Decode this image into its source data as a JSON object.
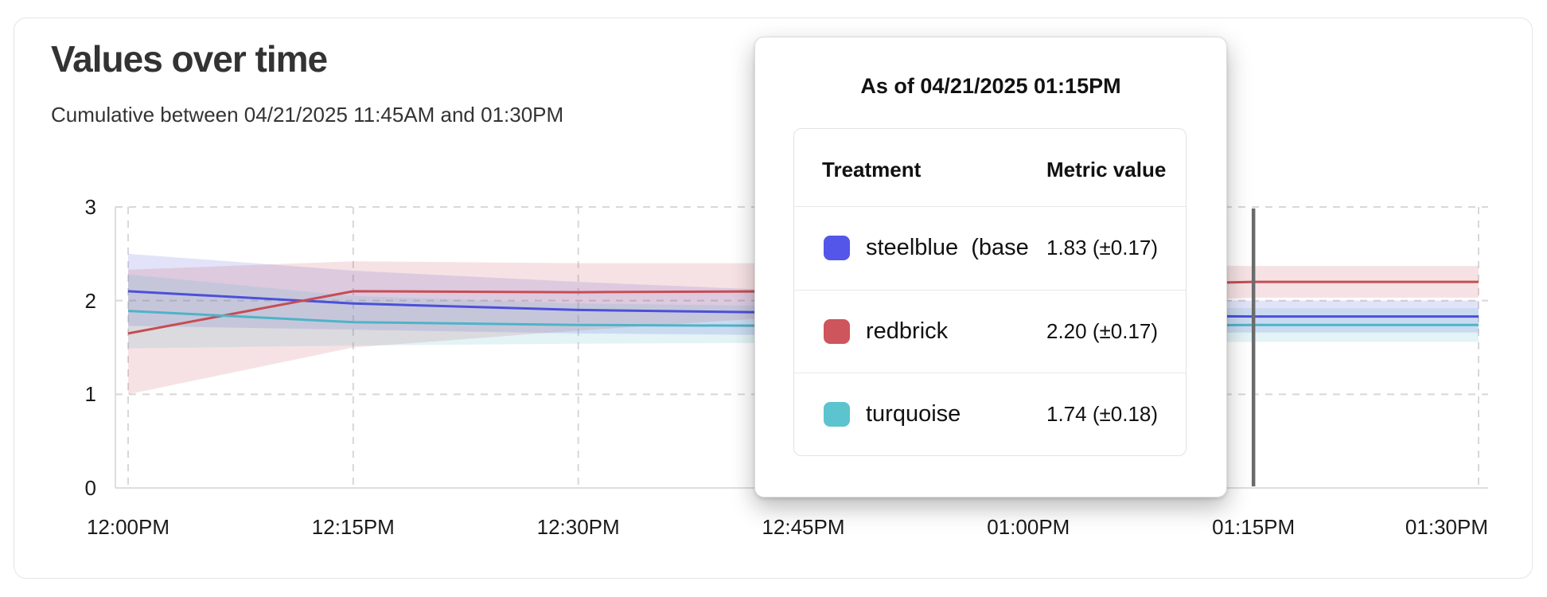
{
  "card": {
    "title": "Values over time",
    "subtitle": "Cumulative between 04/21/2025 11:45AM and 01:30PM"
  },
  "tooltip": {
    "header": "As of 04/21/2025 01:15PM",
    "columns": [
      "Treatment",
      "Metric value"
    ],
    "rows": [
      {
        "label": "steelblue  (baseli",
        "value": "1.83 (±0.17)",
        "swatch_color": "#5356e8"
      },
      {
        "label": "redbrick",
        "value": "2.20 (±0.17)",
        "swatch_color": "#ce555b"
      },
      {
        "label": "turquoise",
        "value": "1.74 (±0.18)",
        "swatch_color": "#5bc4cf"
      }
    ]
  },
  "chart_data": {
    "type": "line",
    "title": "Values over time",
    "subtitle": "Cumulative between 04/21/2025 11:45AM and 01:30PM",
    "x": [
      "12:00PM",
      "12:15PM",
      "12:30PM",
      "12:45PM",
      "01:00PM",
      "01:15PM",
      "01:30PM"
    ],
    "ylim": [
      0,
      3
    ],
    "yticks": [
      0,
      1,
      2,
      3
    ],
    "grid": "dashed",
    "grid_color": "#d8d8d8",
    "axis_color": "#dedede",
    "legend_position": "none",
    "hover_x": "01:15PM",
    "hover_marker_color": "#6b6b6b",
    "series": [
      {
        "name": "steelblue (baseline)",
        "color": "#4b50da",
        "values": [
          2.1,
          1.97,
          1.9,
          1.87,
          1.85,
          1.83,
          1.83
        ],
        "band_lower": [
          1.73,
          1.69,
          1.65,
          1.63,
          1.64,
          1.66,
          1.66
        ],
        "band_upper": [
          2.5,
          2.32,
          2.2,
          2.1,
          2.04,
          2.0,
          2.0
        ]
      },
      {
        "name": "redbrick",
        "color": "#c74d54",
        "values": [
          1.65,
          2.1,
          2.09,
          2.1,
          2.15,
          2.2,
          2.2
        ],
        "band_lower": [
          1.0,
          1.5,
          1.68,
          1.84,
          1.96,
          2.03,
          2.03
        ],
        "band_upper": [
          2.33,
          2.42,
          2.4,
          2.4,
          2.39,
          2.37,
          2.37
        ]
      },
      {
        "name": "turquoise",
        "color": "#4fb3c6",
        "values": [
          1.89,
          1.77,
          1.74,
          1.73,
          1.73,
          1.74,
          1.74
        ],
        "band_lower": [
          1.49,
          1.52,
          1.54,
          1.55,
          1.55,
          1.56,
          1.56
        ],
        "band_upper": [
          2.28,
          2.05,
          1.97,
          1.94,
          1.93,
          1.92,
          1.92
        ]
      }
    ]
  }
}
